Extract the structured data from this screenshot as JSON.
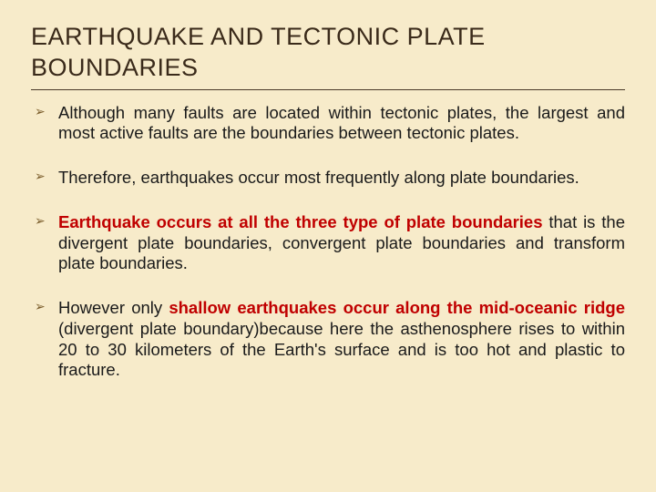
{
  "colors": {
    "background": "#f7ebca",
    "title": "#3a2a1a",
    "rule": "#4a3a28",
    "body_text": "#1a1a1a",
    "bullet_marker": "#7a5c2a",
    "highlight_text": "#c00000"
  },
  "title": "EARTHQUAKE AND TECTONIC PLATE BOUNDARIES",
  "bullets": [
    {
      "segments": [
        {
          "text": "Although many faults are located within tectonic plates, the largest and most active faults are the boundaries between tectonic plates.",
          "bold": false,
          "color": "body_text"
        }
      ]
    },
    {
      "segments": [
        {
          "text": "Therefore, earthquakes occur most frequently along plate boundaries.",
          "bold": false,
          "color": "body_text"
        }
      ]
    },
    {
      "segments": [
        {
          "text": "Earthquake occurs at all the three type of plate boundaries ",
          "bold": true,
          "color": "highlight_text"
        },
        {
          "text": "that is the divergent plate boundaries, convergent plate boundaries and transform plate boundaries.",
          "bold": false,
          "color": "body_text"
        }
      ]
    },
    {
      "segments": [
        {
          "text": "However only ",
          "bold": false,
          "color": "body_text"
        },
        {
          "text": "shallow earthquakes occur along the mid-oceanic ridge ",
          "bold": true,
          "color": "highlight_text"
        },
        {
          "text": "(divergent plate boundary)because here the asthenosphere rises to within 20 to 30 kilometers of the Earth's surface and is too hot and plastic to fracture.",
          "bold": false,
          "color": "body_text"
        }
      ]
    }
  ]
}
